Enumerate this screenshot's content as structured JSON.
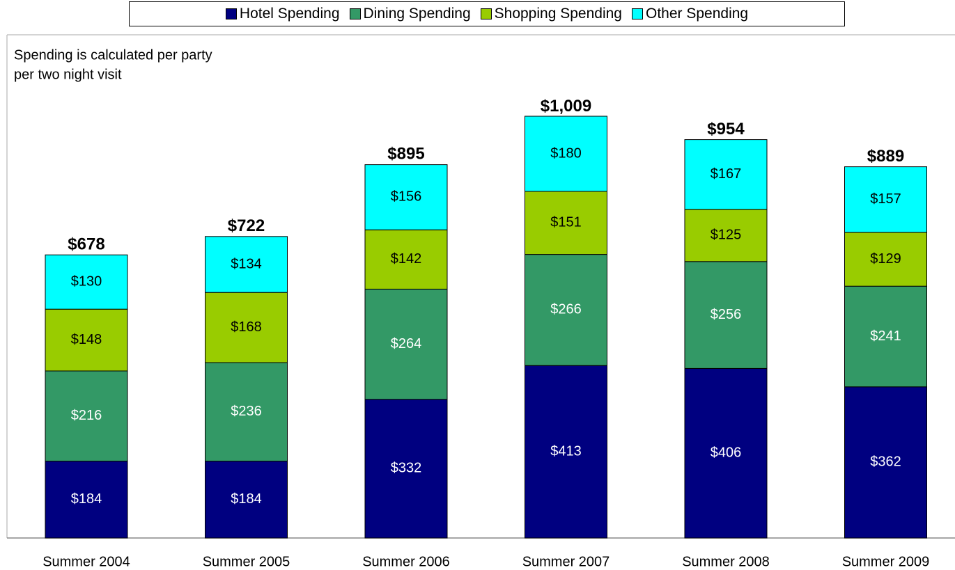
{
  "chart_data": {
    "type": "stacked_bar",
    "note": [
      "Spending is calculated per party",
      "per two night visit"
    ],
    "categories": [
      "Summer 2004",
      "Summer 2005",
      "Summer 2006",
      "Summer 2007",
      "Summer 2008",
      "Summer 2009"
    ],
    "series": [
      {
        "name": "Hotel Spending",
        "color": "#000080",
        "values": [
          184,
          184,
          332,
          413,
          406,
          362
        ],
        "value_labels": [
          "$184",
          "$184",
          "$332",
          "$413",
          "$406",
          "$362"
        ]
      },
      {
        "name": "Dining Spending",
        "color": "#339966",
        "values": [
          216,
          236,
          264,
          266,
          256,
          241
        ],
        "value_labels": [
          "$216",
          "$236",
          "$264",
          "$266",
          "$256",
          "$241"
        ]
      },
      {
        "name": "Shopping Spending",
        "color": "#99cc00",
        "values": [
          148,
          168,
          142,
          151,
          125,
          129
        ],
        "value_labels": [
          "$148",
          "$168",
          "$142",
          "$151",
          "$125",
          "$129"
        ]
      },
      {
        "name": "Other Spending",
        "color": "#00ffff",
        "values": [
          130,
          134,
          156,
          180,
          167,
          157
        ],
        "value_labels": [
          "$130",
          "$134",
          "$156",
          "$180",
          "$167",
          "$157"
        ]
      }
    ],
    "totals": [
      678,
      722,
      895,
      1009,
      954,
      889
    ],
    "total_labels": [
      "$678",
      "$722",
      "$895",
      "$1,009",
      "$954",
      "$889"
    ]
  }
}
